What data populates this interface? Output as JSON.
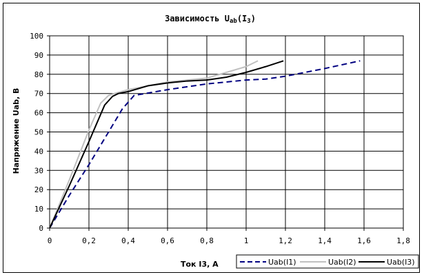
{
  "chart_data": {
    "type": "line",
    "title_prefix": "Зависимость U",
    "title_sub": "ab",
    "title_mid": "(I",
    "title_sub2": "3",
    "title_suffix": ")",
    "xlabel": "Ток I3, А",
    "ylabel": "Напряжение Uab, В",
    "xlim": [
      0,
      1.8
    ],
    "ylim": [
      0,
      100
    ],
    "x_ticks": [
      "0",
      "0,2",
      "0,4",
      "0,6",
      "0,8",
      "1",
      "1,2",
      "1,4",
      "1,6",
      "1,8"
    ],
    "x_tick_values": [
      0,
      0.2,
      0.4,
      0.6,
      0.8,
      1.0,
      1.2,
      1.4,
      1.6,
      1.8
    ],
    "y_ticks": [
      "0",
      "10",
      "20",
      "30",
      "40",
      "50",
      "60",
      "70",
      "80",
      "90",
      "100"
    ],
    "y_tick_values": [
      0,
      10,
      20,
      30,
      40,
      50,
      60,
      70,
      80,
      90,
      100
    ],
    "grid": true,
    "legend_position": "bottom-right",
    "series": [
      {
        "name": "Uab(I1)",
        "color": "#000080",
        "style": "dashed",
        "x": [
          0,
          0.1,
          0.2,
          0.3,
          0.37,
          0.43,
          0.6,
          0.8,
          1.0,
          1.1,
          1.2,
          1.4,
          1.58
        ],
        "y": [
          0,
          17,
          33,
          50,
          62,
          69,
          72,
          75,
          77,
          77.5,
          79,
          83,
          87
        ]
      },
      {
        "name": "Uab(I2)",
        "color": "#c0c0c0",
        "style": "solid",
        "x": [
          0,
          0.1,
          0.2,
          0.26,
          0.3,
          0.33,
          0.4,
          0.5,
          0.6,
          0.7,
          0.8,
          0.9,
          1.0,
          1.06
        ],
        "y": [
          0,
          25,
          51,
          65,
          69,
          70,
          72,
          74,
          76,
          77,
          78,
          81,
          84,
          87
        ]
      },
      {
        "name": "Uab(I3)",
        "color": "#000000",
        "style": "solid",
        "x": [
          0,
          0.1,
          0.2,
          0.28,
          0.32,
          0.35,
          0.4,
          0.5,
          0.6,
          0.7,
          0.8,
          0.9,
          1.0,
          1.1,
          1.19
        ],
        "y": [
          0,
          22,
          45,
          64,
          68.5,
          70,
          71,
          74,
          75.5,
          76.5,
          77,
          78.5,
          81,
          84,
          87
        ]
      }
    ]
  }
}
